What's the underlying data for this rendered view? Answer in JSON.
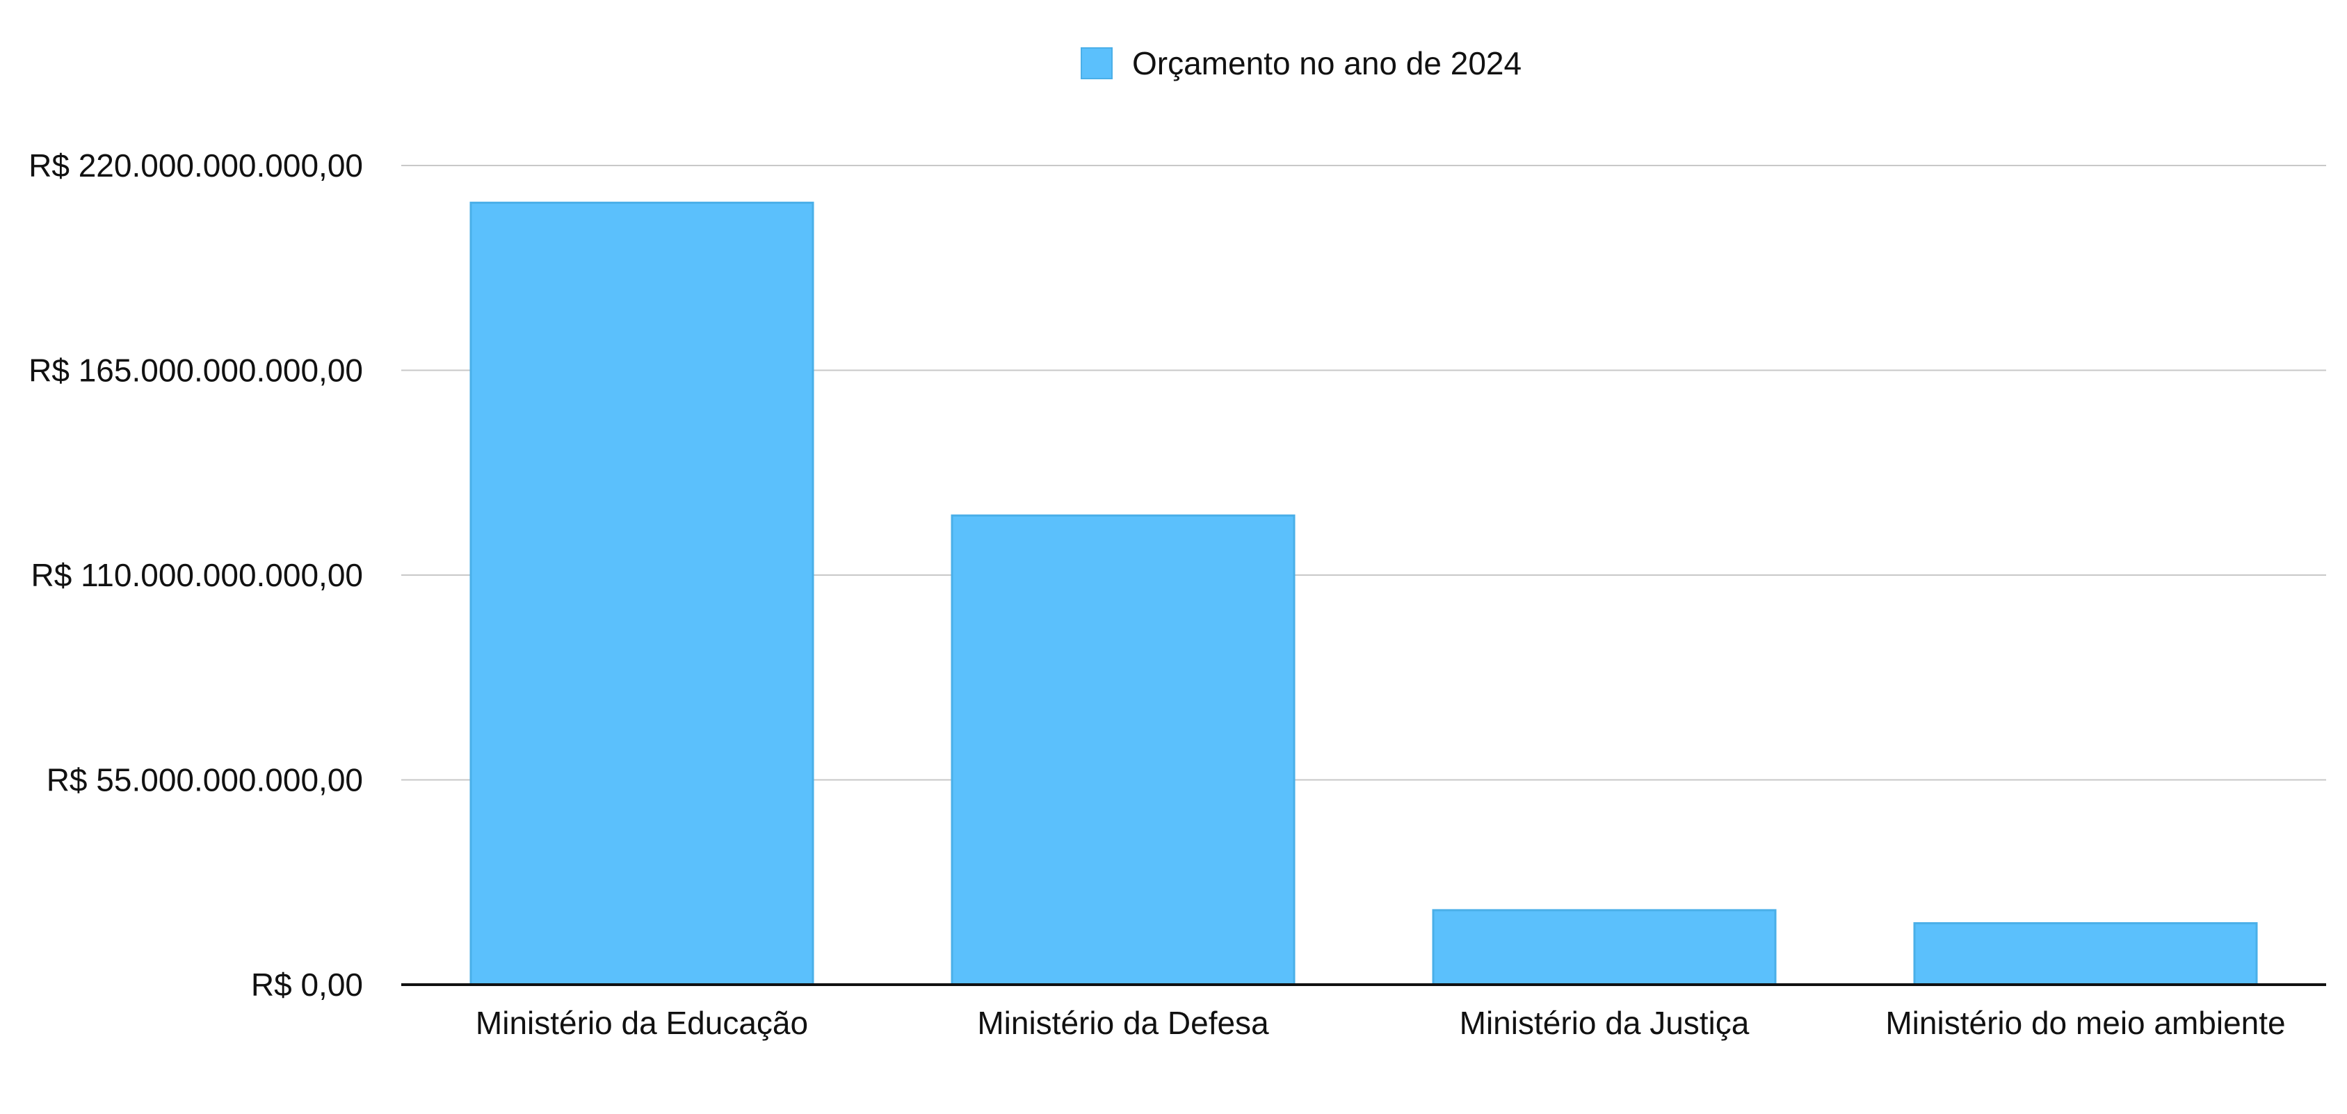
{
  "chart_data": {
    "type": "bar",
    "categories": [
      "Ministério da Educação",
      "Ministério da Defesa",
      "Ministério da Justiça",
      "Ministério do meio ambiente"
    ],
    "series": [
      {
        "name": "Orçamento no ano de 2024",
        "values": [
          210000000000,
          126000000000,
          20000000000,
          16500000000
        ]
      }
    ],
    "yticks": [
      0,
      55000000000,
      110000000000,
      165000000000,
      220000000000
    ],
    "ytick_labels": [
      "R$ 0,00",
      "R$ 55.000.000.000,00",
      "R$ 110.000.000.000,00",
      "R$ 165.000.000.000,00",
      "R$ 220.000.000.000,00"
    ],
    "ylim": [
      0,
      220000000000
    ],
    "grid": true,
    "legend_position": "top-center",
    "bar_color": "#5BC0FC",
    "bar_edge_color": "#4AAFE8"
  }
}
